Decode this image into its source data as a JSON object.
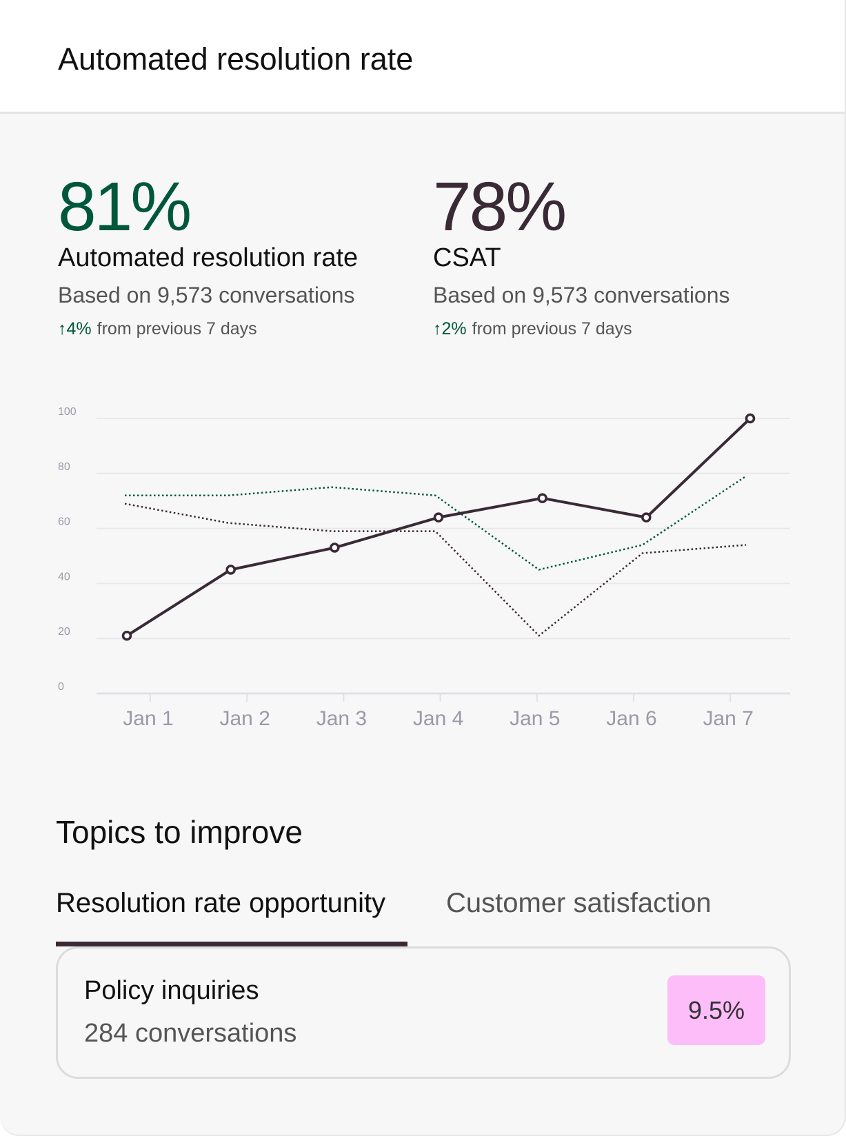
{
  "header": {
    "title": "Automated resolution rate"
  },
  "metrics": [
    {
      "value": "81%",
      "label": "Automated resolution rate",
      "based_on": "Based on 9,573 conversations",
      "delta_icon": "arrow-up-icon",
      "delta_arrow": "↑",
      "delta": "4%",
      "delta_text": "from previous 7 days",
      "color": "#00573c"
    },
    {
      "value": "78%",
      "label": "CSAT",
      "based_on": "Based on 9,573 conversations",
      "delta_icon": "arrow-up-icon",
      "delta_arrow": "↑",
      "delta": "2%",
      "delta_text": "from previous 7 days",
      "color": "#3a2a35"
    }
  ],
  "chart_data": {
    "type": "line",
    "categories": [
      "Jan 1",
      "Jan 2",
      "Jan 3",
      "Jan 4",
      "Jan 5",
      "Jan 6",
      "Jan 7"
    ],
    "ylim": [
      0,
      100
    ],
    "yticks": [
      "0",
      "20",
      "40",
      "60",
      "80",
      "100"
    ],
    "grid": true,
    "series": [
      {
        "style": "solid-markers",
        "color": "#3a2a35",
        "values": [
          21,
          45,
          53,
          64,
          71,
          64,
          100
        ]
      },
      {
        "style": "dotted",
        "color": "#00573c",
        "values": [
          72,
          72,
          75,
          72,
          45,
          54,
          79
        ]
      },
      {
        "style": "dotted",
        "color": "#3a2a35",
        "values": [
          69,
          62,
          59,
          59,
          21,
          51,
          54
        ]
      }
    ]
  },
  "topics": {
    "title": "Topics to improve",
    "tabs": [
      {
        "label": "Resolution rate opportunity",
        "active": true
      },
      {
        "label": "Customer satisfaction",
        "active": false
      }
    ],
    "items": [
      {
        "name": "Policy inquiries",
        "count": "284 conversations",
        "value": "9.5%",
        "badge_color": "#fdbdf8"
      }
    ]
  }
}
